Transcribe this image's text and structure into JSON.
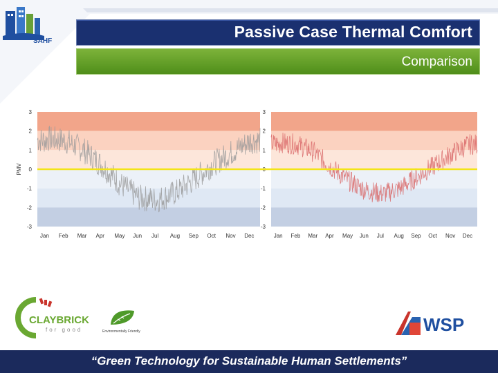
{
  "header": {
    "title": "Passive Case Thermal Comfort",
    "subtitle": "Comparison"
  },
  "logos": {
    "sahf_text": "SAHF",
    "claybrick_text": "CLAYBRICK",
    "claybrick_tagline": "for good",
    "env_text": "Environmentally Friendly",
    "wsp_text": "WSP"
  },
  "footer": {
    "slogan": "“Green Technology for Sustainable Human Settlements”"
  },
  "colors": {
    "title_bar": "#1a3070",
    "subtitle_bar": "#5f9a24",
    "footer_bar": "#1b2a5c",
    "warm_band_dark": "#f2a58a",
    "warm_band_light": "#fbd2c0",
    "cool_band_light": "#dfe8f4",
    "cool_band_dark": "#c3cfe3",
    "left_series": "#9a9a9a",
    "right_series": "#d96a6a",
    "neutral_line": "#f3e416"
  },
  "chart_data": [
    {
      "type": "line",
      "ylabel": "PMV",
      "ylim": [
        -3,
        3
      ],
      "yticks": [
        "3",
        "2",
        "1",
        "0",
        "-1",
        "-2",
        "-3"
      ],
      "categories": [
        "Jan",
        "Feb",
        "Mar",
        "Apr",
        "May",
        "Jun",
        "Jul",
        "Aug",
        "Sep",
        "Oct",
        "Nov",
        "Dec"
      ],
      "series": [
        {
          "monthly_mean": [
            1.6,
            1.5,
            1.0,
            0.2,
            -0.8,
            -1.5,
            -1.6,
            -1.2,
            -0.5,
            0.3,
            0.9,
            1.5
          ],
          "amplitude": 0.7
        }
      ]
    },
    {
      "type": "line",
      "ylim": [
        -3,
        3
      ],
      "yticks": [
        "3",
        "2",
        "1",
        "0",
        "-1",
        "-2",
        "-3"
      ],
      "categories": [
        "Jan",
        "Feb",
        "Mar",
        "Apr",
        "May",
        "Jun",
        "Jul",
        "Aug",
        "Sep",
        "Oct",
        "Nov",
        "Dec"
      ],
      "series": [
        {
          "monthly_mean": [
            1.4,
            1.3,
            0.9,
            0.1,
            -0.6,
            -1.1,
            -1.3,
            -1.0,
            -0.4,
            0.2,
            0.8,
            1.3
          ],
          "amplitude": 0.55
        }
      ]
    }
  ]
}
